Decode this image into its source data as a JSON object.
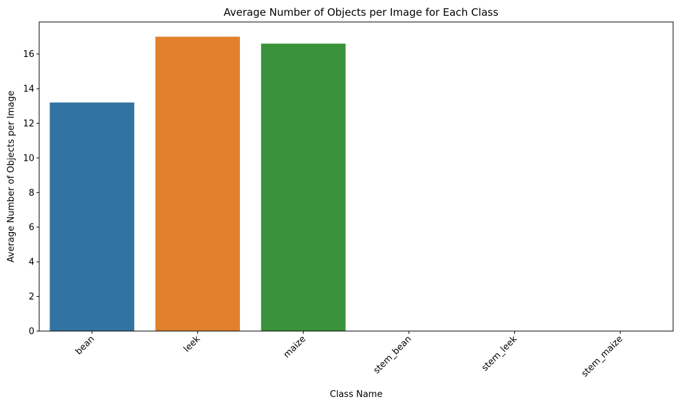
{
  "chart_data": {
    "type": "bar",
    "title": "Average Number of Objects per Image for Each Class",
    "xlabel": "Class Name",
    "ylabel": "Average Number of Objects per Image",
    "categories": [
      "bean",
      "leek",
      "maize",
      "stem_bean",
      "stem_leek",
      "stem_maize"
    ],
    "values": [
      13.2,
      17.0,
      16.6,
      0,
      0,
      0
    ],
    "colors": [
      "#3274a1",
      "#e1812c",
      "#3a923a",
      "#c03d3e",
      "#9372b2",
      "#845b53"
    ],
    "ylim": [
      0,
      17.85
    ],
    "yticks": [
      0,
      2,
      4,
      6,
      8,
      10,
      12,
      14,
      16
    ],
    "xtick_rotation": "45 degrees",
    "grid": false,
    "legend": "none"
  }
}
